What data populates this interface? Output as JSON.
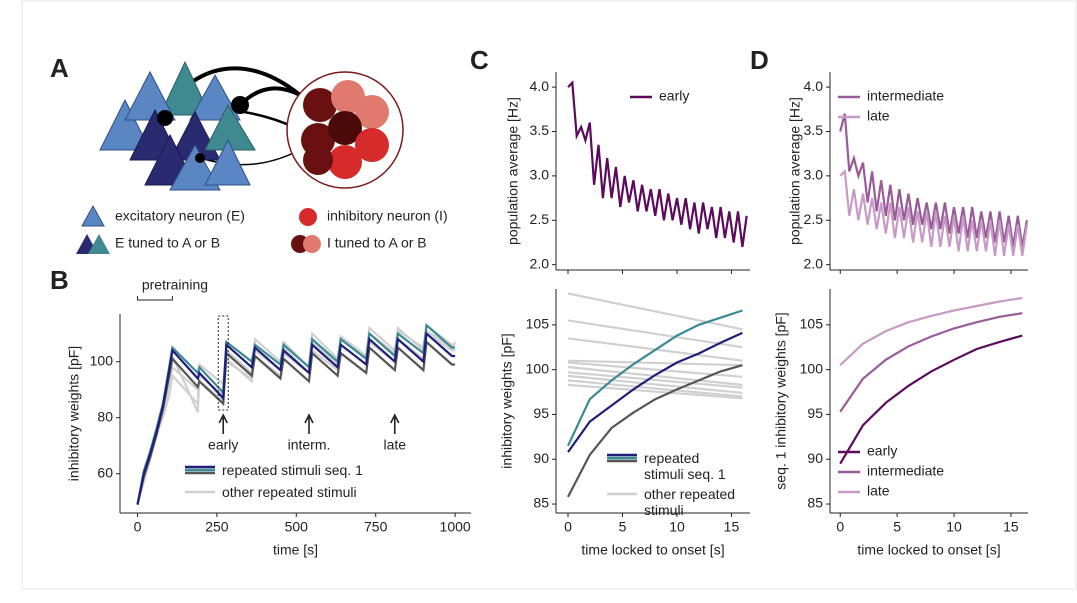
{
  "diagram": {
    "panel": "A",
    "legend": [
      "excitatory neuron (E)",
      "inhibitory neuron (I)",
      "E tuned to A or B",
      "I tuned to A or B"
    ]
  },
  "chart_data": [
    {
      "panel": "B",
      "type": "line",
      "xlabel": "time [s]",
      "ylabel": "inhibitory weights [pF]",
      "x": [
        0,
        20,
        40,
        60,
        80,
        100,
        110,
        190,
        195,
        270,
        280,
        360,
        370,
        450,
        460,
        540,
        550,
        630,
        640,
        720,
        730,
        810,
        820,
        900,
        910,
        990,
        1000
      ],
      "series": [
        {
          "color": "#d0d0d0",
          "values": [
            49,
            58,
            66,
            73,
            82,
            92,
            98,
            90,
            93,
            86,
            100,
            94,
            102,
            95,
            103,
            96,
            104,
            97,
            106,
            99,
            107,
            100,
            108,
            101,
            110,
            104,
            104
          ]
        },
        {
          "color": "#d0d0d0",
          "values": [
            49,
            57,
            65,
            74,
            80,
            88,
            95,
            85,
            99,
            92,
            104,
            96,
            108,
            100,
            107,
            98,
            110,
            101,
            109,
            102,
            112,
            104,
            111,
            105,
            113,
            106,
            106
          ]
        },
        {
          "color": "#d0d0d0",
          "values": [
            49,
            59,
            67,
            76,
            85,
            96,
            102,
            82,
            95,
            88,
            101,
            93,
            104,
            97,
            105,
            96,
            107,
            99,
            108,
            101,
            110,
            103,
            112,
            104,
            111,
            105,
            107
          ]
        },
        {
          "color": "#555555",
          "values": [
            49,
            59,
            66,
            74,
            83,
            95,
            101,
            91,
            93,
            85,
            103,
            95,
            102,
            94,
            101,
            93,
            103,
            95,
            103,
            96,
            105,
            97,
            105,
            97,
            107,
            99,
            99
          ]
        },
        {
          "color": "#3a8a93",
          "values": [
            49,
            61,
            68,
            76,
            85,
            98,
            105,
            96,
            98,
            89,
            107,
            100,
            106,
            99,
            106,
            98,
            108,
            100,
            108,
            101,
            110,
            102,
            110,
            103,
            113,
            105,
            105
          ]
        },
        {
          "color": "#1f1f7a",
          "values": [
            49,
            60,
            67,
            75,
            84,
            97,
            104,
            94,
            96,
            87,
            106,
            98,
            105,
            97,
            104,
            96,
            106,
            98,
            106,
            99,
            108,
            100,
            108,
            100,
            110,
            102,
            102
          ]
        }
      ],
      "legend": [
        {
          "label": "repeated stimuli seq. 1",
          "colors": [
            "#1f1f7a",
            "#3a8a93",
            "#555555"
          ]
        },
        {
          "label": "other repeated stimuli",
          "colors": [
            "#d0d0d0"
          ]
        }
      ],
      "bracket": {
        "text": "pretraining",
        "from": 0,
        "to": 110
      },
      "annotations": [
        {
          "text": "early",
          "x": 270
        },
        {
          "text": "interm.",
          "x": 540
        },
        {
          "text": "late",
          "x": 810
        }
      ],
      "xlim": [
        -55,
        1050
      ],
      "ylim": [
        46,
        117
      ],
      "xticks": [
        0,
        250,
        500,
        750,
        1000
      ],
      "yticks": [
        60,
        80,
        100
      ]
    },
    {
      "panel": "C",
      "type": "line",
      "ylabel": "population average [Hz]",
      "x": [
        0,
        0.4,
        0.8,
        1.2,
        1.6,
        2,
        2.4,
        2.8,
        3.2,
        3.6,
        4,
        4.4,
        4.8,
        5.2,
        5.6,
        6,
        6.4,
        6.8,
        7.2,
        7.6,
        8,
        8.4,
        8.8,
        9.2,
        9.6,
        10,
        10.4,
        10.8,
        11.2,
        11.6,
        12,
        12.4,
        12.8,
        13.2,
        13.6,
        14,
        14.4,
        14.8,
        15.2,
        15.6,
        16,
        16.4
      ],
      "series": [
        {
          "name": "early",
          "color": "#5c0a5c",
          "values": [
            4.0,
            4.05,
            3.45,
            3.55,
            3.4,
            3.6,
            2.9,
            3.35,
            2.75,
            3.2,
            2.75,
            3.1,
            2.65,
            3.0,
            2.7,
            2.95,
            2.6,
            2.9,
            2.6,
            2.85,
            2.55,
            2.85,
            2.5,
            2.8,
            2.5,
            2.75,
            2.45,
            2.75,
            2.4,
            2.7,
            2.35,
            2.7,
            2.4,
            2.65,
            2.3,
            2.65,
            2.3,
            2.6,
            2.25,
            2.6,
            2.2,
            2.55
          ]
        }
      ],
      "xlim": [
        -1.1,
        16.7
      ],
      "ylim": [
        1.94,
        4.17
      ],
      "xticks": [
        0,
        5,
        10,
        15
      ],
      "xticklabels": false,
      "yticks": [
        {
          "value": 2,
          "label": "2.0"
        },
        2.5,
        {
          "value": 3,
          "label": "3.0"
        },
        3.5,
        {
          "value": 4,
          "label": "4.0"
        }
      ]
    },
    {
      "type": "line",
      "xlabel": "time locked to onset [s]",
      "ylabel": "inhibitory weights [pF]",
      "x": [
        0,
        2,
        4,
        6,
        8,
        10,
        12,
        14,
        16
      ],
      "series": [
        {
          "color": "#d0d0d0",
          "x": [
            0,
            16
          ],
          "values": [
            108.5,
            104.5
          ]
        },
        {
          "color": "#d0d0d0",
          "x": [
            0,
            16
          ],
          "values": [
            105.5,
            102.5
          ]
        },
        {
          "color": "#d0d0d0",
          "x": [
            0,
            16
          ],
          "values": [
            103.5,
            101
          ]
        },
        {
          "color": "#d0d0d0",
          "x": [
            0,
            16
          ],
          "values": [
            101,
            100.5
          ]
        },
        {
          "color": "#d0d0d0",
          "x": [
            0,
            16
          ],
          "values": [
            100.8,
            99.2
          ]
        },
        {
          "color": "#d0d0d0",
          "x": [
            0,
            16
          ],
          "values": [
            100.3,
            98.3
          ]
        },
        {
          "color": "#d0d0d0",
          "x": [
            0,
            16
          ],
          "values": [
            99.7,
            98
          ]
        },
        {
          "color": "#d0d0d0",
          "x": [
            0,
            16
          ],
          "values": [
            99.3,
            97.4
          ]
        },
        {
          "color": "#d0d0d0",
          "x": [
            0,
            16
          ],
          "values": [
            98.8,
            97
          ]
        },
        {
          "color": "#d0d0d0",
          "x": [
            0,
            16
          ],
          "values": [
            98.3,
            96.8
          ]
        },
        {
          "color": "#3a8a93",
          "values": [
            91.5,
            96.7,
            98.8,
            100.6,
            102.2,
            103.8,
            105,
            105.8,
            106.6
          ]
        },
        {
          "color": "#1f1f7a",
          "values": [
            90.8,
            94.2,
            96,
            97.8,
            99.4,
            100.8,
            101.8,
            103,
            104.1
          ]
        },
        {
          "color": "#555555",
          "values": [
            85.8,
            90.5,
            93.5,
            95.2,
            96.7,
            97.8,
            98.8,
            99.8,
            100.5
          ]
        }
      ],
      "legend": [
        {
          "label": "repeated stimuli seq. 1",
          "colors": [
            "#1f1f7a",
            "#3a8a93",
            "#555555"
          ]
        },
        {
          "label": "other repeated stimuli",
          "colors": [
            "#d0d0d0"
          ]
        }
      ],
      "xlim": [
        -1.1,
        16.7
      ],
      "ylim": [
        84,
        109
      ],
      "xticks": [
        0,
        5,
        10,
        15
      ],
      "yticks": [
        85,
        90,
        95,
        100,
        105
      ]
    },
    {
      "panel": "D",
      "type": "line",
      "ylabel": "population average [Hz]",
      "x": [
        0,
        0.4,
        0.8,
        1.2,
        1.6,
        2,
        2.4,
        2.8,
        3.2,
        3.6,
        4,
        4.4,
        4.8,
        5.2,
        5.6,
        6,
        6.4,
        6.8,
        7.2,
        7.6,
        8,
        8.4,
        8.8,
        9.2,
        9.6,
        10,
        10.4,
        10.8,
        11.2,
        11.6,
        12,
        12.4,
        12.8,
        13.2,
        13.6,
        14,
        14.4,
        14.8,
        15.2,
        15.6,
        16,
        16.4
      ],
      "series": [
        {
          "name": "intermediate",
          "color": "#9a5c99",
          "values": [
            3.5,
            3.7,
            3.05,
            3.2,
            3.0,
            3.15,
            2.7,
            3.05,
            2.6,
            2.95,
            2.55,
            2.9,
            2.5,
            2.85,
            2.5,
            2.8,
            2.45,
            2.75,
            2.45,
            2.7,
            2.4,
            2.7,
            2.4,
            2.7,
            2.35,
            2.65,
            2.35,
            2.65,
            2.3,
            2.65,
            2.3,
            2.6,
            2.3,
            2.6,
            2.25,
            2.6,
            2.25,
            2.55,
            2.2,
            2.55,
            2.2,
            2.5
          ]
        },
        {
          "name": "late",
          "color": "#c79bc6",
          "values": [
            3.0,
            3.05,
            2.55,
            2.85,
            2.5,
            2.8,
            2.45,
            2.75,
            2.4,
            2.7,
            2.35,
            2.7,
            2.3,
            2.65,
            2.3,
            2.65,
            2.25,
            2.6,
            2.25,
            2.6,
            2.2,
            2.6,
            2.2,
            2.55,
            2.2,
            2.55,
            2.15,
            2.55,
            2.15,
            2.5,
            2.15,
            2.5,
            2.15,
            2.5,
            2.1,
            2.5,
            2.1,
            2.45,
            2.1,
            2.45,
            2.1,
            2.45
          ]
        }
      ],
      "xlim": [
        -0.9,
        16.5
      ],
      "ylim": [
        1.94,
        4.17
      ],
      "xticks": [
        0,
        5,
        10,
        15
      ],
      "xticklabels": false,
      "yticks": [
        {
          "value": 2,
          "label": "2.0"
        },
        2.5,
        {
          "value": 3,
          "label": "3.0"
        },
        3.5,
        {
          "value": 4,
          "label": "4.0"
        }
      ]
    },
    {
      "type": "line",
      "xlabel": "time locked to onset [s]",
      "ylabel": "seq. 1 inhibitory weights [pF]",
      "x": [
        0,
        2,
        4,
        6,
        8,
        10,
        12,
        14,
        16
      ],
      "series": [
        {
          "name": "early",
          "color": "#5c0a5c",
          "values": [
            89.5,
            93.8,
            96.3,
            98.2,
            99.8,
            101.1,
            102.3,
            103.1,
            103.8
          ]
        },
        {
          "name": "intermediate",
          "color": "#9a5c99",
          "values": [
            95.3,
            99,
            101.1,
            102.6,
            103.7,
            104.6,
            105.3,
            105.9,
            106.3
          ]
        },
        {
          "name": "late",
          "color": "#c79bc6",
          "values": [
            100.5,
            102.9,
            104.3,
            105.3,
            106,
            106.6,
            107.1,
            107.6,
            108
          ]
        }
      ],
      "xlim": [
        -0.9,
        16.5
      ],
      "ylim": [
        84,
        109
      ],
      "xticks": [
        0,
        5,
        10,
        15
      ],
      "yticks": [
        85,
        90,
        95,
        100,
        105
      ]
    }
  ]
}
